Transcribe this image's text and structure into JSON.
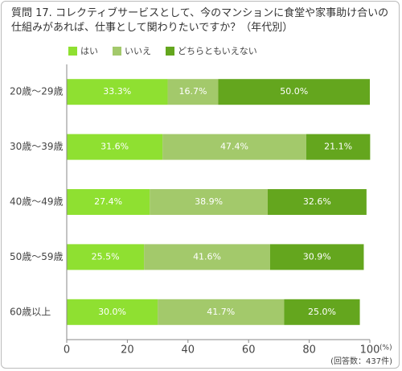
{
  "chart_data": {
    "type": "stacked-barh",
    "title": "質問 17. コレクティブサービスとして、今のマンションに食堂や家事助け合いの仕組みがあれば、仕事として関わりたいですか？（年代別）",
    "categories": [
      "20歳〜29歳",
      "30歳〜39歳",
      "40歳〜49歳",
      "50歳〜59歳",
      "60歳以上"
    ],
    "series": [
      {
        "name": "はい",
        "color": "#8fe031",
        "values": [
          33.3,
          31.6,
          27.4,
          25.5,
          30.0
        ],
        "value_labels": [
          "33.3%",
          "31.6%",
          "27.4%",
          "25.5%",
          "30.0%"
        ]
      },
      {
        "name": "いいえ",
        "color": "#a3c96b",
        "values": [
          16.7,
          47.4,
          38.9,
          41.6,
          41.7
        ],
        "value_labels": [
          "16.7%",
          "47.4%",
          "38.9%",
          "41.6%",
          "41.7%"
        ]
      },
      {
        "name": "どちらともいえない",
        "color": "#64a61e",
        "values": [
          50.0,
          21.1,
          32.6,
          30.9,
          25.0
        ],
        "value_labels": [
          "50.0%",
          "21.1%",
          "32.6%",
          "30.9%",
          "25.0%"
        ]
      }
    ],
    "xlim": [
      0,
      100
    ],
    "xticks": [
      0,
      20,
      40,
      60,
      80,
      100
    ],
    "xlabel": "(%)",
    "note": "(回答数：437件)",
    "grid": false
  }
}
